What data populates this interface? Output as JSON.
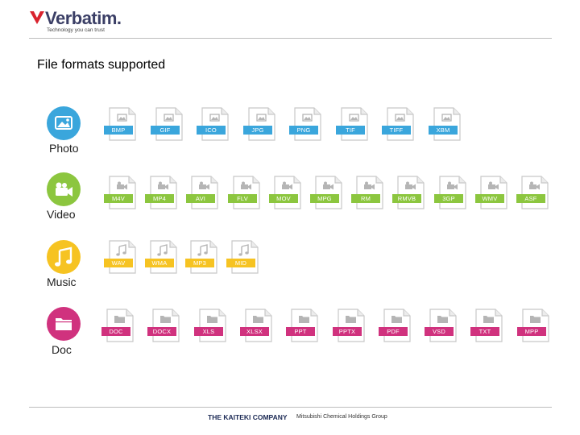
{
  "header": {
    "logo_text": "Verbatim.",
    "tagline": "Technology you can trust"
  },
  "page_title": "File formats supported",
  "colors": {
    "photo": "#3aa6dc",
    "video": "#8cc63f",
    "music": "#f6c322",
    "doc": "#d0327e",
    "logo_red": "#d9232e",
    "logo_text": "#3b3f66"
  },
  "categories": [
    {
      "key": "photo",
      "label": "Photo",
      "icon": "image-icon",
      "formats": [
        "BMP",
        "GIF",
        "ICO",
        "JPG",
        "PNG",
        "TIF",
        "TIFF",
        "XBM"
      ]
    },
    {
      "key": "video",
      "label": "Video",
      "icon": "video-camera-icon",
      "formats": [
        "M4V",
        "MP4",
        "AVI",
        "FLV",
        "MOV",
        "MPG",
        "RM",
        "RMVB",
        "3GP",
        "WMV",
        "ASF"
      ]
    },
    {
      "key": "music",
      "label": "Music",
      "icon": "music-note-icon",
      "formats": [
        "WAV",
        "WMA",
        "MP3",
        "MID"
      ]
    },
    {
      "key": "doc",
      "label": "Doc",
      "icon": "folder-icon",
      "formats": [
        "DOC",
        "DOCX",
        "XLS",
        "XLSX",
        "PPT",
        "PPTX",
        "PDF",
        "VSD",
        "TXT",
        "MPP"
      ]
    }
  ],
  "footer": {
    "brand": "THE KAITEKI COMPANY",
    "group": "Mitsubishi Chemical Holdings Group"
  }
}
